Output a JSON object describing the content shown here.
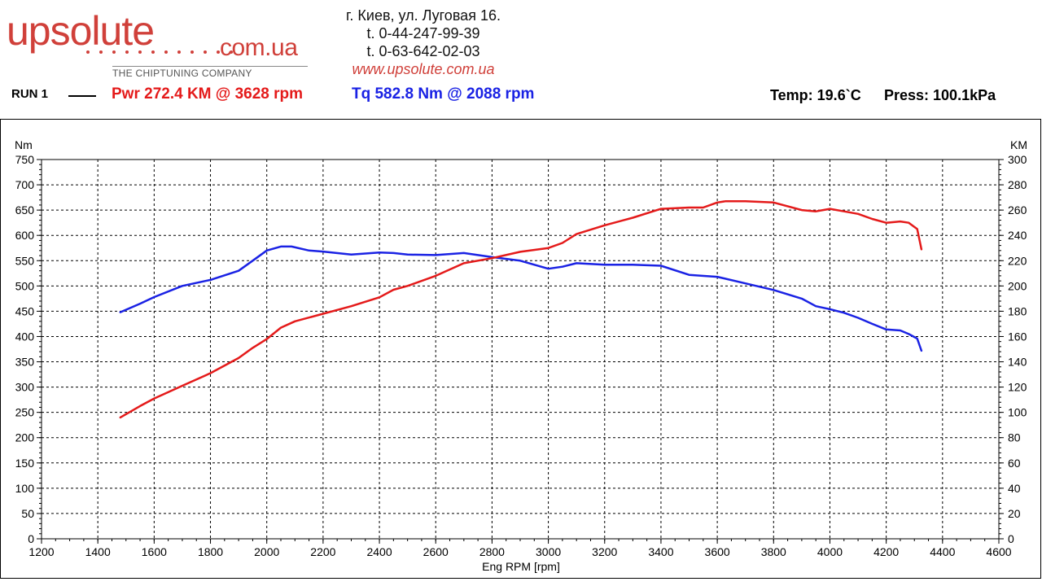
{
  "header": {
    "logo_main": "upsolute",
    "logo_tld": "com.ua",
    "logo_tagline": "THE CHIPTUNING COMPANY",
    "address": "г. Киев, ул. Луговая 16.",
    "phone1": "t. 0-44-247-99-39",
    "phone2": "t. 0-63-642-02-03",
    "website": "www.upsolute.com.ua"
  },
  "summary": {
    "run": "RUN 1",
    "pwr": "Pwr  272.4 KM @ 3628 rpm",
    "tq": "Tq 582.8 Nm @ 2088 rpm",
    "temp": "Temp: 19.6`C",
    "press": "Press: 100.1kPa"
  },
  "colors": {
    "power": "#e41a1a",
    "torque": "#1a22e4",
    "grid": "#000000"
  },
  "chart_data": {
    "type": "line",
    "title": "",
    "xlabel": "Eng RPM [rpm]",
    "ylabel_left": "Nm",
    "ylabel_right": "KM",
    "xlim": [
      1200,
      4600
    ],
    "ylim_left": [
      0,
      750
    ],
    "ylim_right": [
      0,
      300
    ],
    "x_ticks": [
      "1200",
      "1400",
      "1600",
      "1800",
      "2000",
      "2200",
      "2400",
      "2600",
      "2800",
      "3000",
      "3200",
      "3400",
      "3600",
      "3800",
      "4000",
      "4200",
      "4400",
      "4600"
    ],
    "y_ticks_left": [
      "0",
      "50",
      "100",
      "150",
      "200",
      "250",
      "300",
      "350",
      "400",
      "450",
      "500",
      "550",
      "600",
      "650",
      "700",
      "750"
    ],
    "y_ticks_right": [
      "0",
      "20",
      "40",
      "60",
      "80",
      "100",
      "120",
      "140",
      "160",
      "180",
      "200",
      "220",
      "240",
      "260",
      "280",
      "300"
    ],
    "grid": true,
    "series": [
      {
        "name": "Tq",
        "axis": "left",
        "x": [
          1480,
          1550,
          1600,
          1700,
          1800,
          1900,
          1950,
          2000,
          2050,
          2088,
          2150,
          2200,
          2300,
          2400,
          2450,
          2500,
          2600,
          2700,
          2800,
          2900,
          3000,
          3050,
          3100,
          3200,
          3300,
          3400,
          3500,
          3600,
          3700,
          3800,
          3900,
          3950,
          4000,
          4050,
          4100,
          4150,
          4200,
          4250,
          4280,
          4310,
          4325
        ],
        "y": [
          448,
          465,
          478,
          500,
          512,
          530,
          550,
          570,
          578,
          578,
          570,
          568,
          562,
          566,
          565,
          562,
          561,
          565,
          557,
          550,
          534,
          538,
          545,
          542,
          542,
          540,
          522,
          518,
          505,
          492,
          475,
          460,
          454,
          447,
          437,
          425,
          414,
          412,
          405,
          396,
          372
        ]
      },
      {
        "name": "Pwr",
        "axis": "right",
        "x": [
          1480,
          1550,
          1600,
          1700,
          1800,
          1900,
          1950,
          2000,
          2050,
          2100,
          2200,
          2300,
          2400,
          2450,
          2500,
          2600,
          2700,
          2800,
          2900,
          3000,
          3050,
          3100,
          3200,
          3300,
          3400,
          3500,
          3550,
          3600,
          3628,
          3700,
          3800,
          3900,
          3950,
          4000,
          4050,
          4100,
          4150,
          4200,
          4250,
          4280,
          4310,
          4325
        ],
        "y": [
          96,
          105,
          111,
          121,
          131,
          143,
          151,
          158,
          167,
          172,
          178,
          184,
          191,
          197,
          200,
          208,
          218,
          222,
          227,
          230,
          234,
          241,
          248,
          254,
          261,
          262,
          262,
          266,
          267,
          267,
          266,
          260,
          259,
          261,
          259,
          257,
          253,
          250,
          251,
          250,
          245,
          229
        ]
      }
    ]
  }
}
